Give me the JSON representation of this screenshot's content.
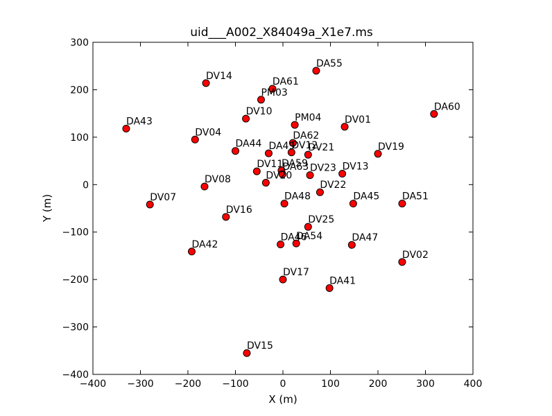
{
  "chart_data": {
    "type": "scatter",
    "title": "uid___A002_X84049a_X1e7.ms",
    "xlabel": "X (m)",
    "ylabel": "Y (m)",
    "xlim": [
      -400,
      400
    ],
    "ylim": [
      -400,
      300
    ],
    "xticks": [
      -400,
      -300,
      -200,
      -100,
      0,
      100,
      200,
      300,
      400
    ],
    "yticks": [
      -400,
      -300,
      -200,
      -100,
      0,
      100,
      200,
      300
    ],
    "grid": false,
    "marker_color": "#ff0000",
    "points": [
      {
        "label": "DA55",
        "x": 70,
        "y": 240
      },
      {
        "label": "DV14",
        "x": -162,
        "y": 214
      },
      {
        "label": "DA61",
        "x": -22,
        "y": 202
      },
      {
        "label": "PM03",
        "x": -46,
        "y": 179
      },
      {
        "label": "DA60",
        "x": 318,
        "y": 149
      },
      {
        "label": "DV10",
        "x": -78,
        "y": 139
      },
      {
        "label": "PM04",
        "x": 25,
        "y": 126
      },
      {
        "label": "DV01",
        "x": 130,
        "y": 122
      },
      {
        "label": "DA43",
        "x": -330,
        "y": 118
      },
      {
        "label": "DV04",
        "x": -185,
        "y": 95
      },
      {
        "label": "DA62",
        "x": 21,
        "y": 88
      },
      {
        "label": "DA44",
        "x": -100,
        "y": 71
      },
      {
        "label": "DA49",
        "x": -30,
        "y": 66
      },
      {
        "label": "DV12",
        "x": 18,
        "y": 68
      },
      {
        "label": "DV21",
        "x": 53,
        "y": 63
      },
      {
        "label": "DV19",
        "x": 200,
        "y": 65
      },
      {
        "label": "DV11",
        "x": -55,
        "y": 28
      },
      {
        "label": "DA59",
        "x": -3,
        "y": 30
      },
      {
        "label": "DA63",
        "x": -1,
        "y": 22
      },
      {
        "label": "DV23",
        "x": 57,
        "y": 20
      },
      {
        "label": "DV13",
        "x": 125,
        "y": 23
      },
      {
        "label": "DV20",
        "x": -36,
        "y": 4
      },
      {
        "label": "DV08",
        "x": -165,
        "y": -4
      },
      {
        "label": "DV22",
        "x": 78,
        "y": -16
      },
      {
        "label": "DV07",
        "x": -280,
        "y": -42
      },
      {
        "label": "DA48",
        "x": 3,
        "y": -40
      },
      {
        "label": "DA45",
        "x": 148,
        "y": -40
      },
      {
        "label": "DA51",
        "x": 251,
        "y": -40
      },
      {
        "label": "DV16",
        "x": -120,
        "y": -68
      },
      {
        "label": "DV25",
        "x": 53,
        "y": -89
      },
      {
        "label": "DA46",
        "x": -5,
        "y": -126
      },
      {
        "label": "DA54",
        "x": 28,
        "y": -124
      },
      {
        "label": "DA47",
        "x": 145,
        "y": -127
      },
      {
        "label": "DA42",
        "x": -192,
        "y": -141
      },
      {
        "label": "DV02",
        "x": 251,
        "y": -163
      },
      {
        "label": "DV17",
        "x": 0,
        "y": -200
      },
      {
        "label": "DA41",
        "x": 98,
        "y": -218
      },
      {
        "label": "DV15",
        "x": -76,
        "y": -355
      }
    ]
  }
}
